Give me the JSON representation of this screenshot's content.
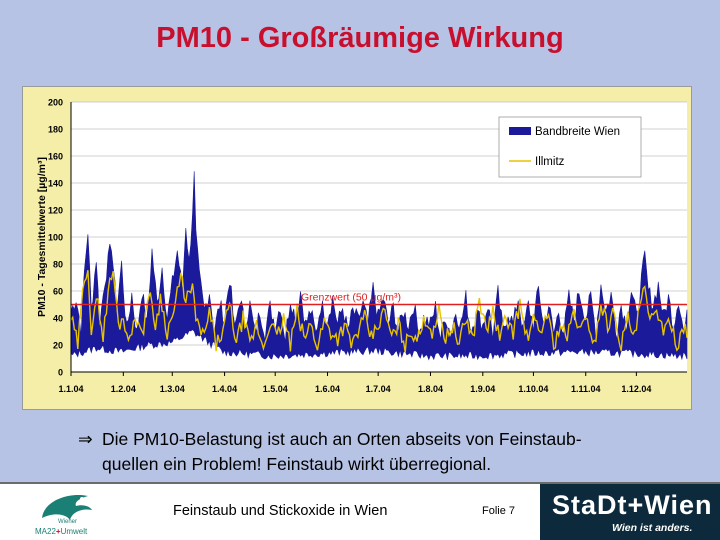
{
  "slide": {
    "title": "PM10 - Großräumige Wirkung",
    "bullet_arrow": "⇒",
    "bullet_line1": "Die PM10-Belastung ist auch an Orten abseits von Feinstaub-",
    "bullet_line2": "quellen ein Problem! Feinstaub wirkt überregional.",
    "footer_title": "Feinstaub und Stickoxide in Wien",
    "footer_page": "Folie 7",
    "logo_left_line1": "Wiener",
    "logo_left_line2_prefix": "MA22",
    "logo_left_line2_suffix": "Umwelt",
    "logo_right_line1": "StaDt+Wien",
    "logo_right_line2": "Wien ist anders."
  },
  "chart_data": {
    "type": "area",
    "ylabel": "PM10 - Tagesmittelwerte [µg/m³]",
    "xlabel": "",
    "ylim": [
      0,
      200
    ],
    "yticks": [
      0,
      20,
      40,
      60,
      80,
      100,
      120,
      140,
      160,
      180,
      200
    ],
    "xticks": [
      "1.1.04",
      "1.2.04",
      "1.3.04",
      "1.4.04",
      "1.5.04",
      "1.6.04",
      "1.7.04",
      "1.8.04",
      "1.9.04",
      "1.10.04",
      "1.11.04",
      "1.12.04"
    ],
    "xtick_day_index": [
      0,
      31,
      60,
      91,
      121,
      152,
      182,
      213,
      244,
      274,
      305,
      335
    ],
    "days": 366,
    "grid": true,
    "legend_position": "top-right",
    "threshold": {
      "label": "Grenzwert   (50 µg/m³)",
      "value": 50,
      "color": "#e02020"
    },
    "series": [
      {
        "name": "Bandbreite Wien",
        "kind": "band",
        "color": "#1a1a9a",
        "upper_anchors": [
          [
            0,
            45
          ],
          [
            3,
            55
          ],
          [
            6,
            32
          ],
          [
            8,
            75
          ],
          [
            10,
            105
          ],
          [
            12,
            45
          ],
          [
            15,
            85
          ],
          [
            17,
            35
          ],
          [
            20,
            68
          ],
          [
            24,
            95
          ],
          [
            27,
            45
          ],
          [
            30,
            80
          ],
          [
            33,
            30
          ],
          [
            36,
            58
          ],
          [
            39,
            28
          ],
          [
            42,
            60
          ],
          [
            45,
            35
          ],
          [
            48,
            90
          ],
          [
            51,
            50
          ],
          [
            54,
            78
          ],
          [
            57,
            40
          ],
          [
            60,
            65
          ],
          [
            63,
            90
          ],
          [
            66,
            60
          ],
          [
            68,
            110
          ],
          [
            70,
            80
          ],
          [
            72,
            120
          ],
          [
            73,
            145
          ],
          [
            74,
            100
          ],
          [
            76,
            70
          ],
          [
            79,
            45
          ],
          [
            82,
            60
          ],
          [
            85,
            30
          ],
          [
            88,
            50
          ],
          [
            91,
            40
          ],
          [
            94,
            70
          ],
          [
            97,
            30
          ],
          [
            100,
            55
          ],
          [
            103,
            35
          ],
          [
            106,
            50
          ],
          [
            109,
            28
          ],
          [
            112,
            45
          ],
          [
            115,
            30
          ],
          [
            118,
            48
          ],
          [
            121,
            35
          ],
          [
            124,
            50
          ],
          [
            127,
            25
          ],
          [
            130,
            55
          ],
          [
            133,
            40
          ],
          [
            136,
            60
          ],
          [
            139,
            35
          ],
          [
            142,
            45
          ],
          [
            145,
            28
          ],
          [
            148,
            50
          ],
          [
            152,
            40
          ],
          [
            155,
            55
          ],
          [
            158,
            35
          ],
          [
            161,
            48
          ],
          [
            164,
            30
          ],
          [
            167,
            45
          ],
          [
            170,
            38
          ],
          [
            173,
            50
          ],
          [
            176,
            35
          ],
          [
            179,
            62
          ],
          [
            182,
            40
          ],
          [
            185,
            55
          ],
          [
            188,
            35
          ],
          [
            191,
            48
          ],
          [
            194,
            30
          ],
          [
            197,
            45
          ],
          [
            200,
            35
          ],
          [
            203,
            50
          ],
          [
            206,
            30
          ],
          [
            209,
            40
          ],
          [
            213,
            35
          ],
          [
            216,
            48
          ],
          [
            219,
            25
          ],
          [
            222,
            42
          ],
          [
            225,
            28
          ],
          [
            228,
            45
          ],
          [
            231,
            35
          ],
          [
            234,
            55
          ],
          [
            237,
            30
          ],
          [
            240,
            45
          ],
          [
            244,
            35
          ],
          [
            247,
            50
          ],
          [
            250,
            28
          ],
          [
            253,
            58
          ],
          [
            256,
            30
          ],
          [
            259,
            45
          ],
          [
            262,
            35
          ],
          [
            265,
            55
          ],
          [
            268,
            30
          ],
          [
            271,
            50
          ],
          [
            274,
            35
          ],
          [
            277,
            62
          ],
          [
            280,
            35
          ],
          [
            283,
            50
          ],
          [
            286,
            28
          ],
          [
            289,
            45
          ],
          [
            292,
            30
          ],
          [
            295,
            55
          ],
          [
            298,
            38
          ],
          [
            301,
            60
          ],
          [
            305,
            40
          ],
          [
            308,
            55
          ],
          [
            311,
            30
          ],
          [
            314,
            65
          ],
          [
            317,
            45
          ],
          [
            320,
            58
          ],
          [
            323,
            30
          ],
          [
            326,
            50
          ],
          [
            329,
            35
          ],
          [
            332,
            60
          ],
          [
            335,
            40
          ],
          [
            338,
            68
          ],
          [
            340,
            85
          ],
          [
            342,
            60
          ],
          [
            345,
            50
          ],
          [
            348,
            65
          ],
          [
            351,
            40
          ],
          [
            354,
            55
          ],
          [
            357,
            35
          ],
          [
            360,
            55
          ],
          [
            363,
            30
          ],
          [
            365,
            40
          ]
        ],
        "lower_anchors": [
          [
            0,
            12
          ],
          [
            15,
            18
          ],
          [
            30,
            15
          ],
          [
            45,
            20
          ],
          [
            60,
            22
          ],
          [
            72,
            30
          ],
          [
            90,
            15
          ],
          [
            120,
            12
          ],
          [
            150,
            14
          ],
          [
            180,
            16
          ],
          [
            210,
            12
          ],
          [
            240,
            12
          ],
          [
            270,
            14
          ],
          [
            300,
            15
          ],
          [
            330,
            14
          ],
          [
            365,
            12
          ]
        ]
      },
      {
        "name": "Illmitz",
        "kind": "line",
        "color": "#e6c200",
        "anchors": [
          [
            0,
            40
          ],
          [
            4,
            20
          ],
          [
            8,
            70
          ],
          [
            10,
            80
          ],
          [
            12,
            30
          ],
          [
            16,
            55
          ],
          [
            19,
            25
          ],
          [
            22,
            60
          ],
          [
            25,
            75
          ],
          [
            28,
            35
          ],
          [
            31,
            40
          ],
          [
            35,
            22
          ],
          [
            38,
            45
          ],
          [
            42,
            25
          ],
          [
            46,
            60
          ],
          [
            50,
            35
          ],
          [
            53,
            55
          ],
          [
            57,
            30
          ],
          [
            61,
            45
          ],
          [
            65,
            70
          ],
          [
            68,
            55
          ],
          [
            72,
            60
          ],
          [
            75,
            35
          ],
          [
            79,
            25
          ],
          [
            82,
            45
          ],
          [
            86,
            20
          ],
          [
            90,
            30
          ],
          [
            94,
            50
          ],
          [
            98,
            22
          ],
          [
            102,
            40
          ],
          [
            106,
            20
          ],
          [
            110,
            35
          ],
          [
            114,
            18
          ],
          [
            118,
            38
          ],
          [
            122,
            25
          ],
          [
            126,
            40
          ],
          [
            130,
            20
          ],
          [
            134,
            45
          ],
          [
            138,
            25
          ],
          [
            142,
            35
          ],
          [
            146,
            20
          ],
          [
            150,
            38
          ],
          [
            154,
            30
          ],
          [
            158,
            25
          ],
          [
            162,
            35
          ],
          [
            166,
            20
          ],
          [
            170,
            30
          ],
          [
            174,
            40
          ],
          [
            178,
            25
          ],
          [
            182,
            35
          ],
          [
            186,
            45
          ],
          [
            190,
            25
          ],
          [
            194,
            35
          ],
          [
            198,
            20
          ],
          [
            202,
            30
          ],
          [
            206,
            25
          ],
          [
            210,
            40
          ],
          [
            214,
            30
          ],
          [
            218,
            45
          ],
          [
            222,
            25
          ],
          [
            226,
            35
          ],
          [
            230,
            20
          ],
          [
            234,
            40
          ],
          [
            238,
            25
          ],
          [
            242,
            55
          ],
          [
            246,
            30
          ],
          [
            250,
            45
          ],
          [
            254,
            25
          ],
          [
            258,
            40
          ],
          [
            262,
            30
          ],
          [
            266,
            50
          ],
          [
            270,
            25
          ],
          [
            274,
            38
          ],
          [
            278,
            28
          ],
          [
            282,
            45
          ],
          [
            286,
            20
          ],
          [
            290,
            35
          ],
          [
            294,
            25
          ],
          [
            298,
            45
          ],
          [
            302,
            30
          ],
          [
            306,
            40
          ],
          [
            310,
            20
          ],
          [
            314,
            50
          ],
          [
            318,
            35
          ],
          [
            322,
            45
          ],
          [
            326,
            20
          ],
          [
            330,
            40
          ],
          [
            334,
            25
          ],
          [
            338,
            55
          ],
          [
            340,
            60
          ],
          [
            343,
            35
          ],
          [
            347,
            50
          ],
          [
            351,
            25
          ],
          [
            355,
            40
          ],
          [
            359,
            20
          ],
          [
            363,
            35
          ],
          [
            365,
            25
          ]
        ]
      }
    ]
  }
}
